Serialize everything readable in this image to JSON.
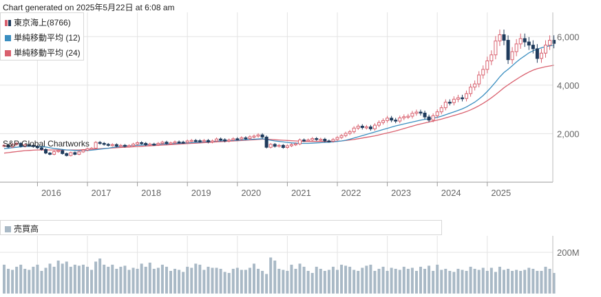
{
  "generated_text": "Chart generated on 2025年5月22日 at 6:08 am",
  "watermark": "S&P Global Chartworks",
  "legend": [
    {
      "label": "東京海上(8766)",
      "color": "#1f3b5c",
      "icon": "candlestick-icon"
    },
    {
      "label": "単純移動平均 (12)",
      "color": "#3a8ec0",
      "icon": "square-icon"
    },
    {
      "label": "単純移動平均 (24)",
      "color": "#d9606e",
      "icon": "square-icon"
    }
  ],
  "volume_legend": {
    "label": "売買高",
    "color": "#a9b9c6",
    "icon": "square-icon"
  },
  "colors": {
    "up": "#d9606e",
    "down": "#1f3b5c",
    "sma12": "#3a8ec0",
    "sma24": "#d9606e",
    "volume": "#a9b9c6",
    "grid": "#e3e3e3"
  },
  "chart_data": [
    {
      "type": "candlestick",
      "x_start": "2015-05",
      "x_ticks": [
        "2016",
        "2017",
        "2018",
        "2019",
        "2020",
        "2021",
        "2022",
        "2023",
        "2024",
        "2025"
      ],
      "y_ticks": [
        "2,000",
        "4,000",
        "6,000"
      ],
      "y_tick_values": [
        2000,
        4000,
        6000
      ],
      "ylim": [
        0,
        7000
      ],
      "grid": true,
      "monthly_close": [
        1520,
        1450,
        1560,
        1600,
        1480,
        1540,
        1520,
        1470,
        1420,
        1350,
        1200,
        1150,
        1260,
        1300,
        1180,
        1100,
        1220,
        1150,
        1250,
        1320,
        1380,
        1400,
        1640,
        1600,
        1560,
        1520,
        1550,
        1490,
        1520,
        1480,
        1510,
        1570,
        1630,
        1600,
        1540,
        1570,
        1550,
        1600,
        1650,
        1600,
        1620,
        1660,
        1650,
        1640,
        1700,
        1720,
        1710,
        1680,
        1720,
        1660,
        1700,
        1780,
        1750,
        1700,
        1740,
        1790,
        1780,
        1830,
        1800,
        1870,
        1900,
        1950,
        1860,
        1440,
        1560,
        1480,
        1520,
        1430,
        1500,
        1550,
        1580,
        1740,
        1720,
        1740,
        1800,
        1760,
        1770,
        1700,
        1690,
        1760,
        1840,
        1920,
        2010,
        2080,
        2230,
        2310,
        2250,
        2280,
        2200,
        2350,
        2460,
        2540,
        2640,
        2560,
        2520,
        2650,
        2700,
        2720,
        2840,
        2890,
        2850,
        2690,
        2560,
        2740,
        2900,
        3070,
        3300,
        3280,
        3420,
        3480,
        3450,
        3650,
        3920,
        4050,
        4420,
        4650,
        5000,
        5250,
        5820,
        6080,
        5850,
        5050,
        5380,
        5700,
        5920,
        5780,
        5650,
        5500,
        5100,
        5320,
        5650,
        5850,
        5720
      ],
      "sma12": [
        1380,
        1400,
        1420,
        1440,
        1460,
        1470,
        1480,
        1480,
        1480,
        1470,
        1450,
        1420,
        1390,
        1370,
        1350,
        1330,
        1320,
        1310,
        1300,
        1300,
        1310,
        1320,
        1340,
        1360,
        1380,
        1400,
        1430,
        1450,
        1470,
        1490,
        1500,
        1510,
        1520,
        1530,
        1540,
        1550,
        1555,
        1560,
        1570,
        1575,
        1580,
        1590,
        1600,
        1610,
        1620,
        1630,
        1640,
        1650,
        1660,
        1670,
        1680,
        1690,
        1700,
        1710,
        1715,
        1720,
        1730,
        1740,
        1750,
        1760,
        1770,
        1780,
        1790,
        1760,
        1730,
        1700,
        1680,
        1660,
        1640,
        1620,
        1610,
        1600,
        1600,
        1600,
        1610,
        1620,
        1630,
        1640,
        1650,
        1660,
        1680,
        1700,
        1730,
        1770,
        1820,
        1870,
        1920,
        1970,
        2020,
        2070,
        2120,
        2170,
        2220,
        2270,
        2320,
        2360,
        2400,
        2440,
        2480,
        2520,
        2560,
        2590,
        2610,
        2640,
        2670,
        2720,
        2780,
        2840,
        2900,
        2960,
        3020,
        3100,
        3200,
        3300,
        3430,
        3570,
        3740,
        3930,
        4130,
        4340,
        4520,
        4650,
        4800,
        4950,
        5090,
        5210,
        5330,
        5420,
        5480,
        5540,
        5590,
        5620,
        5650
      ],
      "sma24": [
        1200,
        1220,
        1240,
        1260,
        1280,
        1300,
        1310,
        1320,
        1330,
        1330,
        1330,
        1330,
        1330,
        1330,
        1330,
        1330,
        1330,
        1330,
        1330,
        1340,
        1350,
        1360,
        1370,
        1380,
        1390,
        1400,
        1410,
        1420,
        1430,
        1440,
        1450,
        1460,
        1470,
        1480,
        1490,
        1500,
        1510,
        1520,
        1530,
        1540,
        1550,
        1560,
        1570,
        1580,
        1590,
        1600,
        1610,
        1620,
        1630,
        1640,
        1650,
        1660,
        1670,
        1680,
        1690,
        1700,
        1710,
        1720,
        1730,
        1740,
        1750,
        1760,
        1770,
        1770,
        1760,
        1750,
        1740,
        1730,
        1720,
        1710,
        1700,
        1690,
        1680,
        1680,
        1680,
        1680,
        1680,
        1680,
        1680,
        1680,
        1690,
        1700,
        1720,
        1740,
        1760,
        1790,
        1820,
        1850,
        1880,
        1910,
        1950,
        1990,
        2030,
        2070,
        2110,
        2160,
        2210,
        2260,
        2310,
        2360,
        2400,
        2440,
        2480,
        2520,
        2560,
        2600,
        2650,
        2700,
        2750,
        2800,
        2850,
        2910,
        2980,
        3060,
        3150,
        3250,
        3360,
        3480,
        3610,
        3750,
        3890,
        4010,
        4130,
        4240,
        4350,
        4450,
        4540,
        4620,
        4680,
        4720,
        4760,
        4790,
        4820
      ]
    },
    {
      "type": "bar",
      "series_name": "売買高",
      "y_ticks": [
        "200M"
      ],
      "y_tick_values": [
        200
      ],
      "ylim": [
        0,
        280
      ],
      "unit": "M",
      "values": [
        140,
        120,
        115,
        130,
        140,
        120,
        115,
        130,
        140,
        110,
        125,
        145,
        130,
        160,
        145,
        155,
        130,
        140,
        135,
        140,
        130,
        115,
        155,
        170,
        140,
        130,
        140,
        120,
        130,
        135,
        115,
        125,
        120,
        145,
        130,
        150,
        120,
        125,
        140,
        130,
        110,
        120,
        115,
        105,
        130,
        125,
        145,
        140,
        115,
        130,
        125,
        125,
        120,
        105,
        100,
        120,
        125,
        115,
        115,
        125,
        145,
        120,
        110,
        95,
        175,
        160,
        120,
        115,
        110,
        140,
        120,
        145,
        130,
        110,
        100,
        130,
        120,
        110,
        115,
        130,
        115,
        140,
        135,
        130,
        115,
        110,
        125,
        135,
        140,
        110,
        120,
        130,
        110,
        125,
        120,
        115,
        130,
        120,
        125,
        110,
        130,
        120,
        135,
        110,
        140,
        115,
        120,
        110,
        105,
        120,
        115,
        110,
        130,
        120,
        115,
        125,
        110,
        125,
        105,
        130,
        115,
        120,
        110,
        115,
        110,
        115,
        125,
        120,
        110,
        110,
        130,
        120,
        100
      ]
    }
  ]
}
